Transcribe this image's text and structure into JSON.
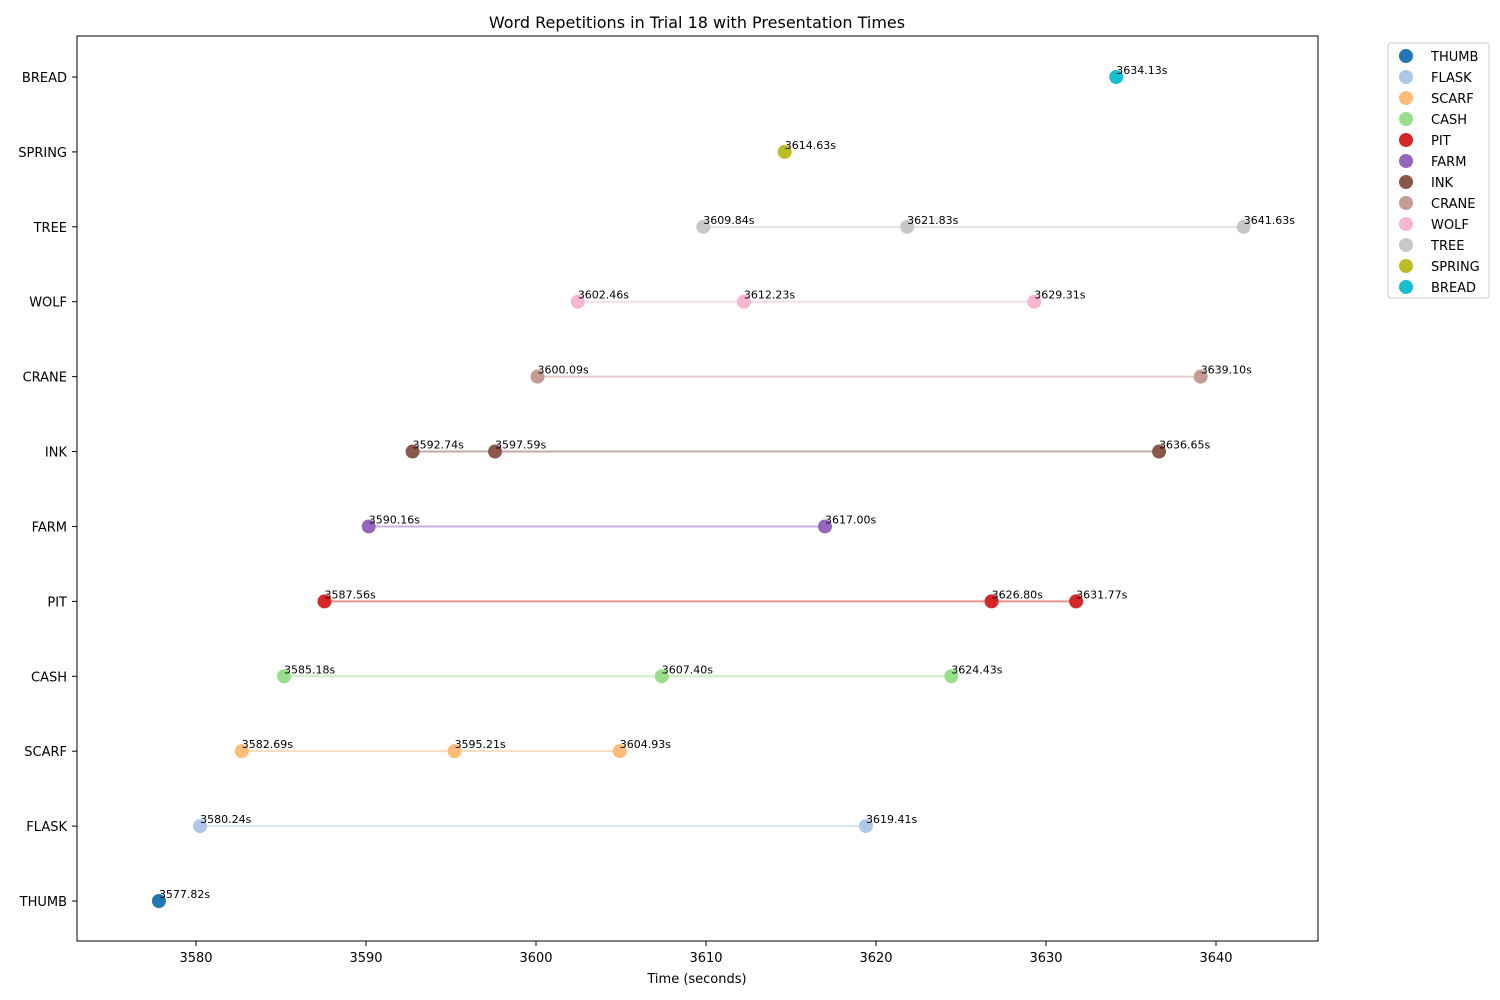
{
  "chart_data": {
    "type": "scatter",
    "title": "Word Repetitions in Trial 18 with Presentation Times",
    "xlabel": "Time (seconds)",
    "ylabel": "",
    "xlim": [
      3573,
      3646
    ],
    "xticks": [
      3580,
      3590,
      3600,
      3610,
      3620,
      3630,
      3640
    ],
    "grid": false,
    "legend_position": "outside-top-right",
    "point_label_suffix": "s",
    "categories": [
      "THUMB",
      "FLASK",
      "SCARF",
      "CASH",
      "PIT",
      "FARM",
      "INK",
      "CRANE",
      "WOLF",
      "TREE",
      "SPRING",
      "BREAD"
    ],
    "series": [
      {
        "name": "THUMB",
        "color": "#1f77b4",
        "x": [
          3577.82
        ]
      },
      {
        "name": "FLASK",
        "color": "#aec7e8",
        "x": [
          3580.24,
          3619.41
        ]
      },
      {
        "name": "SCARF",
        "color": "#ffbb78",
        "x": [
          3582.69,
          3595.21,
          3604.93
        ]
      },
      {
        "name": "CASH",
        "color": "#98df8a",
        "x": [
          3585.18,
          3607.4,
          3624.43
        ]
      },
      {
        "name": "PIT",
        "color": "#d62728",
        "x": [
          3587.56,
          3626.8,
          3631.77
        ]
      },
      {
        "name": "FARM",
        "color": "#9467bd",
        "x": [
          3590.16,
          3617.0
        ]
      },
      {
        "name": "INK",
        "color": "#8c564b",
        "x": [
          3592.74,
          3597.59,
          3636.65
        ]
      },
      {
        "name": "CRANE",
        "color": "#c49c94",
        "x": [
          3600.09,
          3639.1
        ]
      },
      {
        "name": "WOLF",
        "color": "#f7b6d2",
        "x": [
          3602.46,
          3612.23,
          3629.31
        ]
      },
      {
        "name": "TREE",
        "color": "#c7c7c7",
        "x": [
          3609.84,
          3621.83,
          3641.63
        ]
      },
      {
        "name": "SPRING",
        "color": "#bcbd22",
        "x": [
          3614.63
        ]
      },
      {
        "name": "BREAD",
        "color": "#17becf",
        "x": [
          3634.13
        ]
      }
    ]
  }
}
